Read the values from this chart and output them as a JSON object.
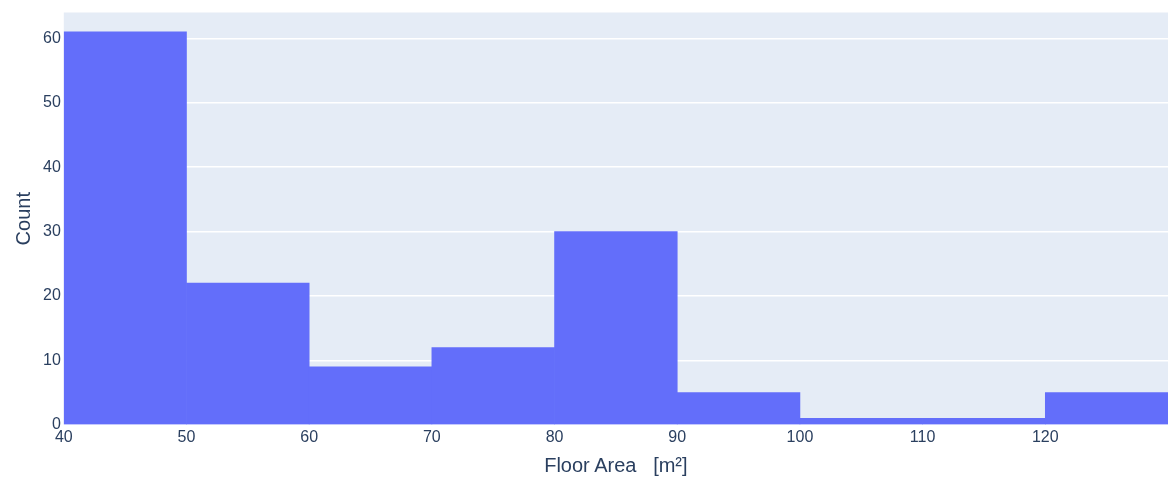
{
  "chart_data": {
    "type": "histogram",
    "xlabel": "Floor Area   [m²]",
    "ylabel": "Count",
    "bins": [
      40,
      50,
      60,
      70,
      80,
      90,
      100,
      110,
      120,
      130
    ],
    "values": [
      61,
      22,
      9,
      12,
      30,
      5,
      1,
      1,
      5
    ],
    "color": "#636efa",
    "xlim": [
      40,
      130
    ],
    "xticks": [
      40,
      50,
      60,
      70,
      80,
      90,
      100,
      110,
      120
    ],
    "ylim": [
      0,
      64
    ],
    "yticks": [
      0,
      10,
      20,
      30,
      40,
      50,
      60
    ],
    "grid": "y"
  }
}
